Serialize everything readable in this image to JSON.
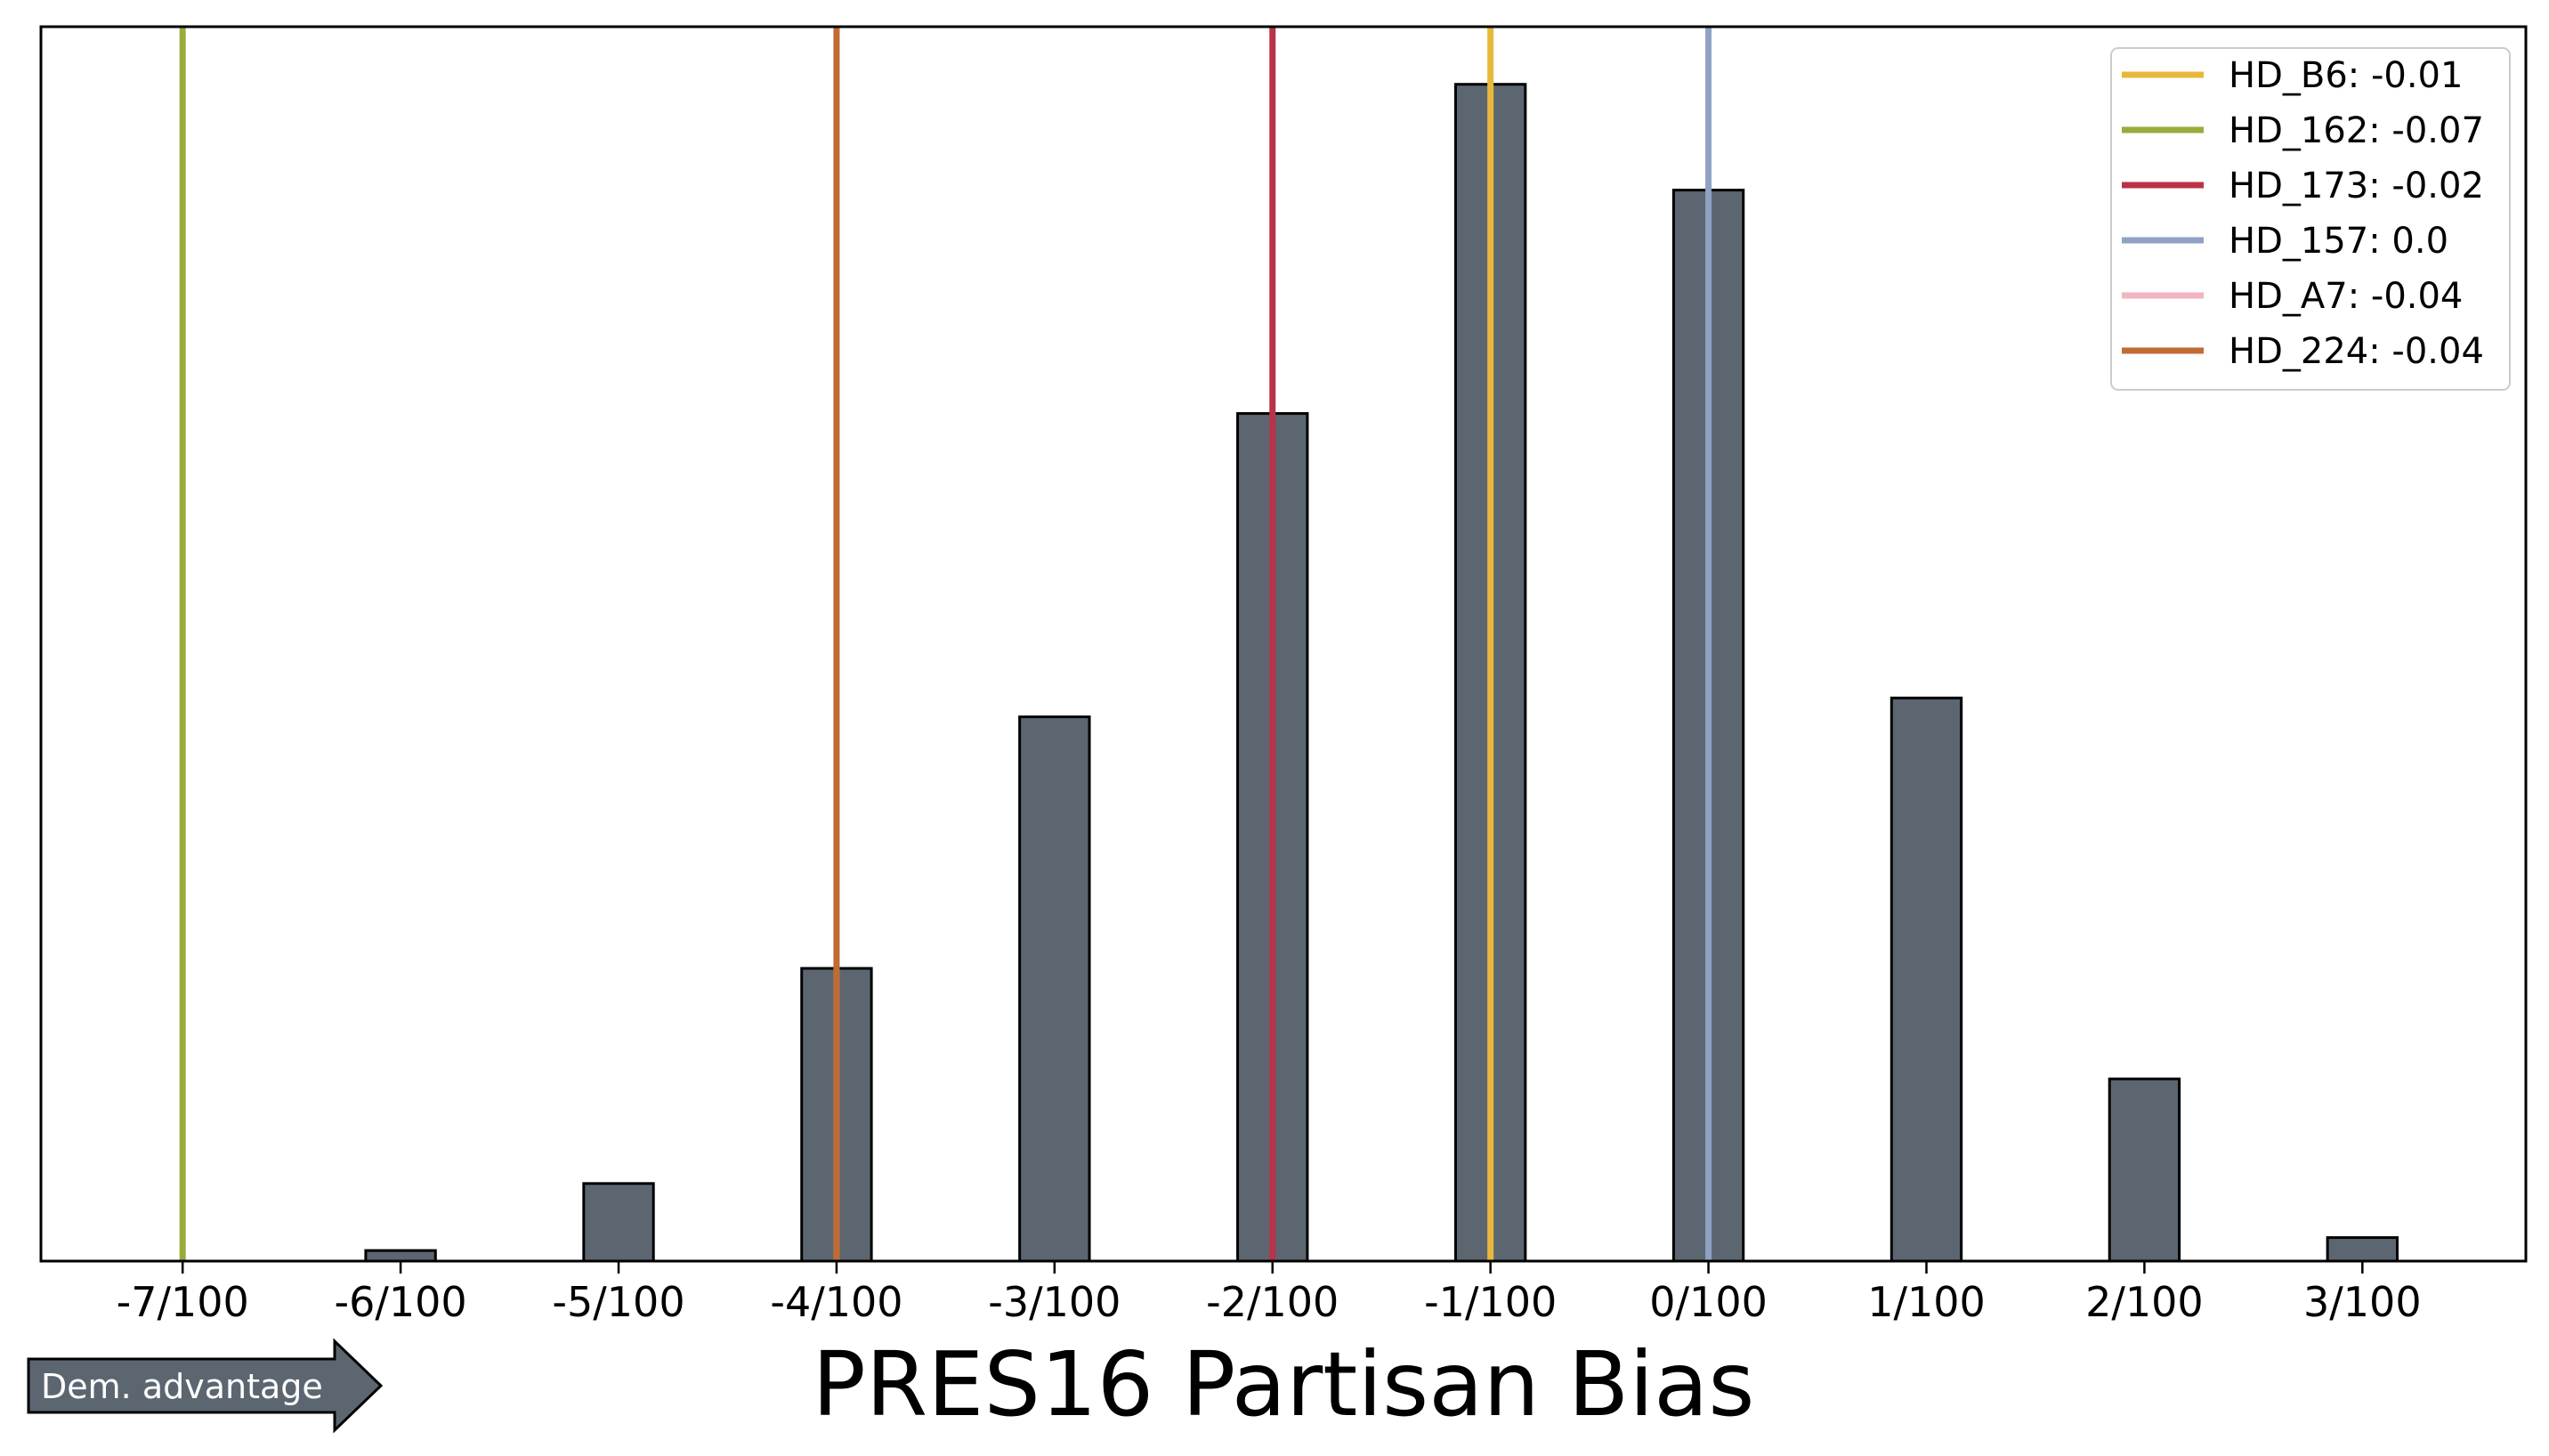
{
  "chart_data": {
    "type": "bar",
    "title": "",
    "xlabel": "PRES16 Partisan Bias",
    "ylabel": "",
    "grid": false,
    "legend_position": "top-right",
    "xlim": [
      -0.0765,
      0.0375
    ],
    "ylim": [
      0,
      1050
    ],
    "x_ticks": [
      -0.07,
      -0.06,
      -0.05,
      -0.04,
      -0.03,
      -0.02,
      -0.01,
      0.0,
      0.01,
      0.02,
      0.03
    ],
    "x_tick_labels": [
      "-7/100",
      "-6/100",
      "-5/100",
      "-4/100",
      "-3/100",
      "-2/100",
      "-1/100",
      "0/100",
      "1/100",
      "2/100",
      "3/100"
    ],
    "bar_color": "#5c6670",
    "bar_edge_color": "#000000",
    "bar_width": 0.0032,
    "bars": [
      {
        "x": -0.07,
        "value": 0
      },
      {
        "x": -0.065,
        "value": 0
      },
      {
        "x": -0.06,
        "value": 9
      },
      {
        "x": -0.055,
        "value": 0
      },
      {
        "x": -0.05,
        "value": 66
      },
      {
        "x": -0.045,
        "value": 0
      },
      {
        "x": -0.04,
        "value": 249
      },
      {
        "x": -0.035,
        "value": 0
      },
      {
        "x": -0.03,
        "value": 463
      },
      {
        "x": -0.025,
        "value": 0
      },
      {
        "x": -0.02,
        "value": 721
      },
      {
        "x": -0.015,
        "value": 0
      },
      {
        "x": -0.01,
        "value": 1001
      },
      {
        "x": -0.005,
        "value": 0
      },
      {
        "x": 0.0,
        "value": 911
      },
      {
        "x": 0.005,
        "value": 0
      },
      {
        "x": 0.01,
        "value": 479
      },
      {
        "x": 0.015,
        "value": 0
      },
      {
        "x": 0.02,
        "value": 155
      },
      {
        "x": 0.025,
        "value": 0
      },
      {
        "x": 0.03,
        "value": 20
      }
    ],
    "lines": [
      {
        "name": "HD_B6: -0.01",
        "x": -0.01,
        "color": "#e8b83c"
      },
      {
        "name": "HD_162: -0.07",
        "x": -0.07,
        "color": "#9aab3c"
      },
      {
        "name": "HD_173: -0.02",
        "x": -0.02,
        "color": "#b83347"
      },
      {
        "name": "HD_157: 0.0",
        "x": 0.0,
        "color": "#8fa2c4"
      },
      {
        "name": "HD_A7: -0.04",
        "x": -0.04,
        "color": "#f2b4bf"
      },
      {
        "name": "HD_224: -0.04",
        "x": -0.04,
        "color": "#c06b33"
      }
    ],
    "annotation": {
      "text": "Dem. advantage",
      "color": "#5c6670"
    }
  }
}
